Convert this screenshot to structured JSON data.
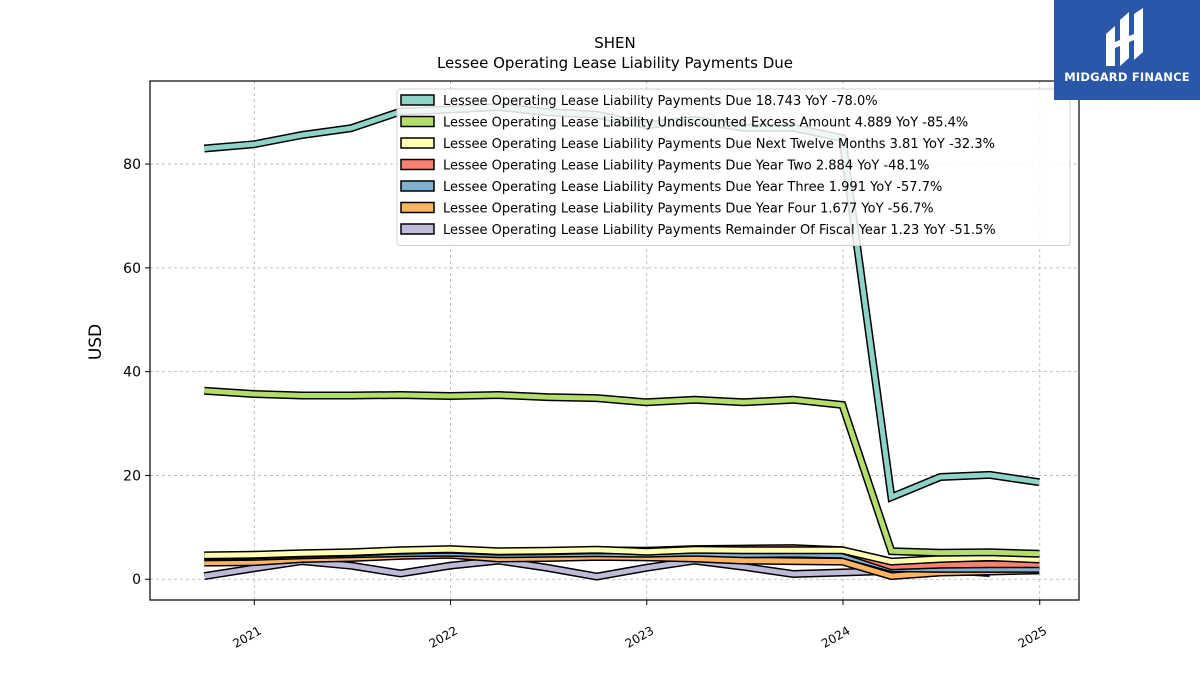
{
  "logo": {
    "text": "MIDGARD FINANCE",
    "icon": "midgard-logo-icon",
    "bg_color": "#2a57a8"
  },
  "chart_data": {
    "type": "line",
    "title": "SHEN",
    "subtitle": "Lessee Operating Lease Liability Payments Due",
    "ylabel": "USD",
    "xlabel": "",
    "ylim": [
      -4,
      96
    ],
    "xlim": [
      "2020-06-21",
      "2025-03-15"
    ],
    "yticks": [
      0,
      20,
      40,
      60,
      80
    ],
    "xticks": [
      "2021",
      "2022",
      "2023",
      "2024",
      "2025"
    ],
    "grid": true,
    "legend_position": "top-right",
    "series": [
      {
        "name": "Lessee Operating Lease Liability Payments Due  18.743 YoY -78.0%",
        "color": "#8dd3c7",
        "points": [
          [
            "2020-09-30",
            83.0
          ],
          [
            "2020-12-31",
            83.8
          ],
          [
            "2021-03-31",
            85.6
          ],
          [
            "2021-06-30",
            86.9
          ],
          [
            "2021-09-30",
            90.1
          ],
          [
            "2021-12-31",
            90.5
          ],
          [
            "2022-03-31",
            91.0
          ],
          [
            "2022-06-30",
            90.0
          ],
          [
            "2022-09-30",
            89.5
          ],
          [
            "2022-12-31",
            87.5
          ],
          [
            "2023-03-31",
            88.5
          ],
          [
            "2023-06-30",
            87.0
          ],
          [
            "2023-09-30",
            87.0
          ],
          [
            "2023-12-31",
            85.0
          ],
          [
            "2024-03-31",
            15.8
          ],
          [
            "2024-06-30",
            19.7
          ],
          [
            "2024-09-30",
            20.1
          ],
          [
            "2024-12-31",
            18.7
          ]
        ]
      },
      {
        "name": "Lessee Operating Lease Liability Undiscounted Excess Amount  4.889 YoY -85.4%",
        "color": "#b3de69",
        "points": [
          [
            "2020-09-30",
            36.3
          ],
          [
            "2020-12-31",
            35.7
          ],
          [
            "2021-03-31",
            35.4
          ],
          [
            "2021-06-30",
            35.4
          ],
          [
            "2021-09-30",
            35.5
          ],
          [
            "2021-12-31",
            35.3
          ],
          [
            "2022-03-31",
            35.5
          ],
          [
            "2022-06-30",
            35.1
          ],
          [
            "2022-09-30",
            34.9
          ],
          [
            "2022-12-31",
            34.1
          ],
          [
            "2023-03-31",
            34.6
          ],
          [
            "2023-06-30",
            34.1
          ],
          [
            "2023-09-30",
            34.6
          ],
          [
            "2023-12-31",
            33.6
          ],
          [
            "2024-03-31",
            5.4
          ],
          [
            "2024-06-30",
            5.1
          ],
          [
            "2024-09-30",
            5.2
          ],
          [
            "2024-12-31",
            4.9
          ]
        ]
      },
      {
        "name": "Lessee Operating Lease Liability Payments Due Next Twelve Months  3.81 YoY -32.3%",
        "color": "#ffffb3",
        "points": [
          [
            "2020-09-30",
            4.6
          ],
          [
            "2020-12-31",
            4.7
          ],
          [
            "2021-03-31",
            5.0
          ],
          [
            "2021-06-30",
            5.2
          ],
          [
            "2021-09-30",
            5.6
          ],
          [
            "2021-12-31",
            5.8
          ],
          [
            "2022-03-31",
            5.4
          ],
          [
            "2022-06-30",
            5.5
          ],
          [
            "2022-09-30",
            5.7
          ],
          [
            "2022-12-31",
            5.3
          ],
          [
            "2023-03-31",
            5.7
          ],
          [
            "2023-06-30",
            5.6
          ],
          [
            "2023-09-30",
            5.6
          ],
          [
            "2023-12-31",
            5.6
          ],
          [
            "2024-03-31",
            3.4
          ],
          [
            "2024-06-30",
            3.9
          ],
          [
            "2024-09-30",
            4.2
          ],
          [
            "2024-12-31",
            3.8
          ]
        ]
      },
      {
        "name": "Lessee Operating Lease Liability Payments Due Year Two  2.884 YoY -48.1%",
        "color": "#fb8072",
        "points": [
          [
            "2020-09-30",
            4.4
          ],
          [
            "2020-12-31",
            4.6
          ],
          [
            "2021-03-31",
            4.9
          ],
          [
            "2021-06-30",
            5.1
          ],
          [
            "2021-09-30",
            5.5
          ],
          [
            "2021-12-31",
            5.7
          ],
          [
            "2022-03-31",
            5.3
          ],
          [
            "2022-06-30",
            5.4
          ],
          [
            "2022-09-30",
            5.6
          ],
          [
            "2022-12-31",
            5.5
          ],
          [
            "2023-03-31",
            5.8
          ],
          [
            "2023-06-30",
            5.9
          ],
          [
            "2023-09-30",
            6.0
          ],
          [
            "2023-12-31",
            5.6
          ],
          [
            "2024-03-31",
            2.5
          ],
          [
            "2024-06-30",
            2.8
          ],
          [
            "2024-09-30",
            2.9
          ],
          [
            "2024-12-31",
            2.9
          ]
        ]
      },
      {
        "name": "Lessee Operating Lease Liability Payments Due Year Three  1.991 YoY -57.7%",
        "color": "#80b1d3",
        "points": [
          [
            "2020-09-30",
            4.2
          ],
          [
            "2020-12-31",
            4.3
          ],
          [
            "2021-03-31",
            4.6
          ],
          [
            "2021-06-30",
            4.8
          ],
          [
            "2021-09-30",
            5.0
          ],
          [
            "2021-12-31",
            5.1
          ],
          [
            "2022-03-31",
            4.8
          ],
          [
            "2022-06-30",
            4.9
          ],
          [
            "2022-09-30",
            5.0
          ],
          [
            "2022-12-31",
            4.9
          ],
          [
            "2023-03-31",
            5.1
          ],
          [
            "2023-06-30",
            4.8
          ],
          [
            "2023-09-30",
            4.9
          ],
          [
            "2023-12-31",
            4.7
          ],
          [
            "2024-03-31",
            2.1
          ],
          [
            "2024-06-30",
            2.0
          ],
          [
            "2024-09-30",
            2.0
          ],
          [
            "2024-12-31",
            2.0
          ]
        ]
      },
      {
        "name": "Lessee Operating Lease Liability Payments Due Year Four  1.677 YoY -56.7%",
        "color": "#fdb462",
        "points": [
          [
            "2020-09-30",
            3.2
          ],
          [
            "2020-12-31",
            3.3
          ],
          [
            "2021-03-31",
            3.9
          ],
          [
            "2021-06-30",
            4.1
          ],
          [
            "2021-09-30",
            4.5
          ],
          [
            "2021-12-31",
            4.7
          ],
          [
            "2022-03-31",
            4.0
          ],
          [
            "2022-06-30",
            4.1
          ],
          [
            "2022-09-30",
            4.3
          ],
          [
            "2022-12-31",
            4.2
          ],
          [
            "2023-03-31",
            4.0
          ],
          [
            "2023-06-30",
            3.6
          ],
          [
            "2023-09-30",
            3.5
          ],
          [
            "2023-12-31",
            3.4
          ],
          [
            "2024-03-31",
            0.6
          ],
          [
            "2024-06-30",
            1.3
          ],
          [
            "2024-09-30",
            1.5
          ],
          [
            "2024-12-31",
            1.7
          ]
        ]
      },
      {
        "name": "Lessee Operating Lease Liability Payments Remainder Of Fiscal Year  1.23 YoY -51.5%",
        "color": "#bebada",
        "points": [
          [
            "2020-09-30",
            0.6
          ],
          [
            "2020-12-31",
            2.1
          ],
          [
            "2021-03-31",
            3.5
          ],
          [
            "2021-06-30",
            2.6
          ],
          [
            "2021-09-30",
            1.1
          ],
          [
            "2021-12-31",
            2.6
          ],
          [
            "2022-03-31",
            3.6
          ],
          [
            "2022-06-30",
            2.2
          ],
          [
            "2022-09-30",
            0.5
          ],
          [
            "2022-12-31",
            2.2
          ],
          [
            "2023-03-31",
            3.6
          ],
          [
            "2023-06-30",
            2.4
          ],
          [
            "2023-09-30",
            1.0
          ],
          [
            "2023-12-31",
            1.3
          ],
          [
            "2024-03-31",
            1.6
          ],
          [
            "2024-06-30",
            1.8
          ],
          [
            "2024-09-30",
            1.2
          ]
        ]
      }
    ]
  }
}
